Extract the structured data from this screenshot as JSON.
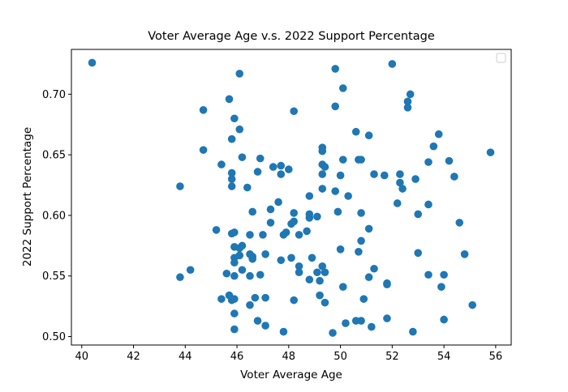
{
  "chart_data": {
    "type": "scatter",
    "title": "Voter Average Age v.s. 2022 Support Percentage",
    "xlabel": "Voter Average Age",
    "ylabel": "2022 Support Percentage",
    "xlim": [
      39.6,
      56.6
    ],
    "ylim": [
      0.493,
      0.737
    ],
    "xticks": [
      40,
      42,
      44,
      46,
      48,
      50,
      52,
      54,
      56
    ],
    "yticks": [
      0.5,
      0.55,
      0.6,
      0.65,
      0.7
    ],
    "xtick_labels": [
      "40",
      "42",
      "44",
      "46",
      "48",
      "50",
      "52",
      "54",
      "56"
    ],
    "ytick_labels": [
      "0.50",
      "0.55",
      "0.60",
      "0.65",
      "0.70"
    ],
    "grid": false,
    "legend": {
      "placement": "top-right",
      "entries": []
    },
    "marker_color": "#1f77b4",
    "points": [
      [
        40.4,
        0.726
      ],
      [
        43.8,
        0.624
      ],
      [
        43.8,
        0.549
      ],
      [
        44.2,
        0.555
      ],
      [
        44.7,
        0.687
      ],
      [
        44.7,
        0.654
      ],
      [
        45.2,
        0.588
      ],
      [
        45.4,
        0.642
      ],
      [
        45.4,
        0.531
      ],
      [
        45.6,
        0.552
      ],
      [
        45.7,
        0.696
      ],
      [
        45.7,
        0.534
      ],
      [
        45.8,
        0.663
      ],
      [
        45.8,
        0.635
      ],
      [
        45.8,
        0.63
      ],
      [
        45.8,
        0.624
      ],
      [
        45.8,
        0.585
      ],
      [
        45.8,
        0.53
      ],
      [
        45.9,
        0.68
      ],
      [
        45.9,
        0.586
      ],
      [
        45.9,
        0.574
      ],
      [
        45.9,
        0.565
      ],
      [
        45.9,
        0.561
      ],
      [
        45.9,
        0.55
      ],
      [
        45.9,
        0.531
      ],
      [
        45.9,
        0.519
      ],
      [
        45.9,
        0.506
      ],
      [
        46.1,
        0.717
      ],
      [
        46.1,
        0.671
      ],
      [
        46.1,
        0.573
      ],
      [
        46.1,
        0.567
      ],
      [
        46.2,
        0.648
      ],
      [
        46.2,
        0.575
      ],
      [
        46.2,
        0.555
      ],
      [
        46.4,
        0.623
      ],
      [
        46.5,
        0.584
      ],
      [
        46.5,
        0.568
      ],
      [
        46.5,
        0.55
      ],
      [
        46.5,
        0.526
      ],
      [
        46.6,
        0.603
      ],
      [
        46.6,
        0.566
      ],
      [
        46.6,
        0.564
      ],
      [
        46.7,
        0.532
      ],
      [
        46.8,
        0.636
      ],
      [
        46.8,
        0.513
      ],
      [
        46.9,
        0.647
      ],
      [
        46.9,
        0.551
      ],
      [
        47.0,
        0.584
      ],
      [
        47.1,
        0.568
      ],
      [
        47.1,
        0.532
      ],
      [
        47.1,
        0.509
      ],
      [
        47.3,
        0.605
      ],
      [
        47.3,
        0.594
      ],
      [
        47.4,
        0.64
      ],
      [
        47.6,
        0.611
      ],
      [
        47.7,
        0.641
      ],
      [
        47.7,
        0.634
      ],
      [
        47.7,
        0.563
      ],
      [
        47.8,
        0.584
      ],
      [
        47.8,
        0.504
      ],
      [
        47.9,
        0.586
      ],
      [
        48.0,
        0.638
      ],
      [
        48.1,
        0.593
      ],
      [
        48.1,
        0.565
      ],
      [
        48.2,
        0.686
      ],
      [
        48.2,
        0.602
      ],
      [
        48.2,
        0.595
      ],
      [
        48.2,
        0.53
      ],
      [
        48.4,
        0.584
      ],
      [
        48.4,
        0.558
      ],
      [
        48.4,
        0.553
      ],
      [
        48.7,
        0.587
      ],
      [
        48.8,
        0.616
      ],
      [
        48.8,
        0.601
      ],
      [
        48.8,
        0.598
      ],
      [
        48.8,
        0.547
      ],
      [
        48.9,
        0.565
      ],
      [
        49.1,
        0.599
      ],
      [
        49.1,
        0.553
      ],
      [
        49.2,
        0.546
      ],
      [
        49.2,
        0.534
      ],
      [
        49.3,
        0.656
      ],
      [
        49.3,
        0.653
      ],
      [
        49.3,
        0.642
      ],
      [
        49.3,
        0.634
      ],
      [
        49.3,
        0.622
      ],
      [
        49.3,
        0.558
      ],
      [
        49.4,
        0.64
      ],
      [
        49.4,
        0.553
      ],
      [
        49.4,
        0.528
      ],
      [
        49.7,
        0.503
      ],
      [
        49.8,
        0.721
      ],
      [
        49.8,
        0.69
      ],
      [
        49.8,
        0.62
      ],
      [
        49.9,
        0.603
      ],
      [
        50.0,
        0.633
      ],
      [
        50.0,
        0.572
      ],
      [
        50.1,
        0.705
      ],
      [
        50.1,
        0.646
      ],
      [
        50.1,
        0.541
      ],
      [
        50.2,
        0.511
      ],
      [
        50.3,
        0.616
      ],
      [
        50.6,
        0.669
      ],
      [
        50.6,
        0.513
      ],
      [
        50.7,
        0.646
      ],
      [
        50.7,
        0.57
      ],
      [
        50.8,
        0.646
      ],
      [
        50.8,
        0.602
      ],
      [
        50.8,
        0.579
      ],
      [
        50.8,
        0.513
      ],
      [
        50.9,
        0.531
      ],
      [
        51.1,
        0.666
      ],
      [
        51.1,
        0.589
      ],
      [
        51.1,
        0.549
      ],
      [
        51.2,
        0.508
      ],
      [
        51.3,
        0.634
      ],
      [
        51.3,
        0.556
      ],
      [
        51.7,
        0.633
      ],
      [
        51.8,
        0.544
      ],
      [
        51.8,
        0.543
      ],
      [
        51.8,
        0.515
      ],
      [
        52.0,
        0.725
      ],
      [
        52.2,
        0.61
      ],
      [
        52.3,
        0.634
      ],
      [
        52.3,
        0.627
      ],
      [
        52.4,
        0.622
      ],
      [
        52.6,
        0.694
      ],
      [
        52.6,
        0.689
      ],
      [
        52.7,
        0.7
      ],
      [
        52.8,
        0.504
      ],
      [
        52.9,
        0.63
      ],
      [
        53.0,
        0.601
      ],
      [
        53.0,
        0.569
      ],
      [
        53.4,
        0.644
      ],
      [
        53.4,
        0.609
      ],
      [
        53.4,
        0.551
      ],
      [
        53.6,
        0.657
      ],
      [
        53.8,
        0.667
      ],
      [
        53.9,
        0.541
      ],
      [
        54.0,
        0.551
      ],
      [
        54.0,
        0.514
      ],
      [
        54.2,
        0.645
      ],
      [
        54.4,
        0.632
      ],
      [
        54.6,
        0.594
      ],
      [
        54.8,
        0.568
      ],
      [
        55.1,
        0.526
      ],
      [
        55.8,
        0.652
      ]
    ]
  }
}
